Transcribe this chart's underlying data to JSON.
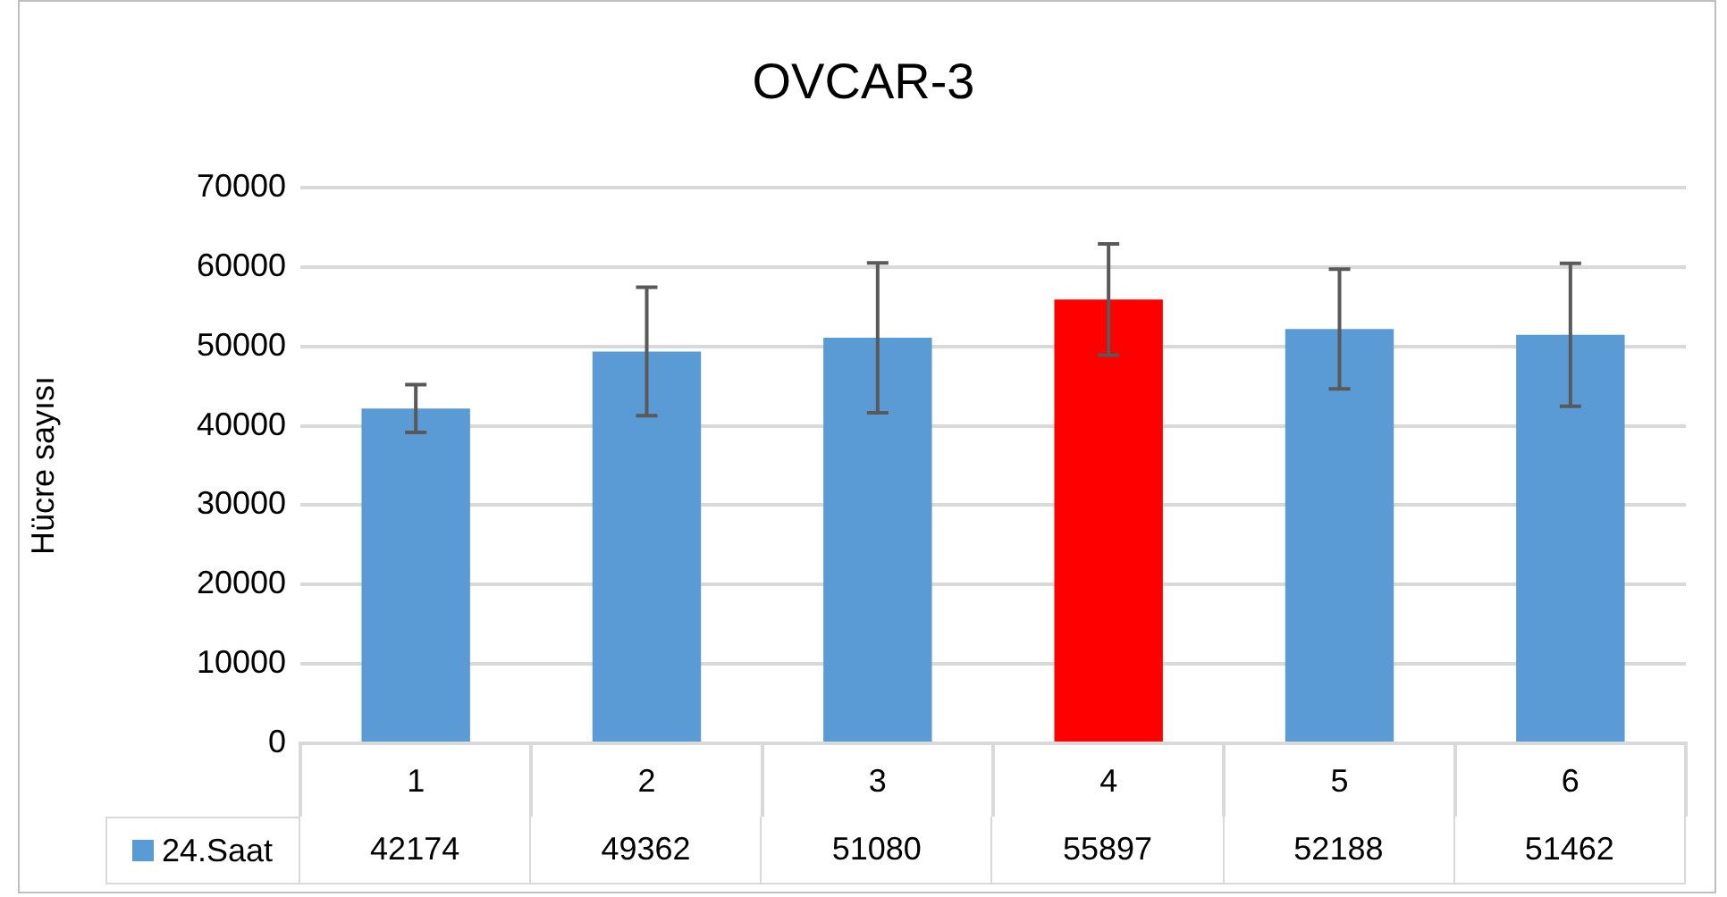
{
  "chart_data": {
    "type": "bar",
    "title": "OVCAR-3",
    "ylabel": "Hücre sayısı",
    "categories": [
      "1",
      "2",
      "3",
      "4",
      "5",
      "6"
    ],
    "series": [
      {
        "name": "24.Saat",
        "color": "#5b9bd5",
        "colors": [
          "#5b9bd5",
          "#5b9bd5",
          "#5b9bd5",
          "#ff0000",
          "#5b9bd5",
          "#5b9bd5"
        ],
        "values": [
          42174,
          49362,
          51080,
          55897,
          52188,
          51462
        ],
        "errors": [
          3000,
          8100,
          9450,
          7000,
          7550,
          9000
        ]
      }
    ],
    "ylim": [
      0,
      70000
    ],
    "yticks": [
      0,
      10000,
      20000,
      30000,
      40000,
      50000,
      60000,
      70000
    ],
    "grid": "y",
    "legend": "bottom",
    "data_labels": true
  }
}
